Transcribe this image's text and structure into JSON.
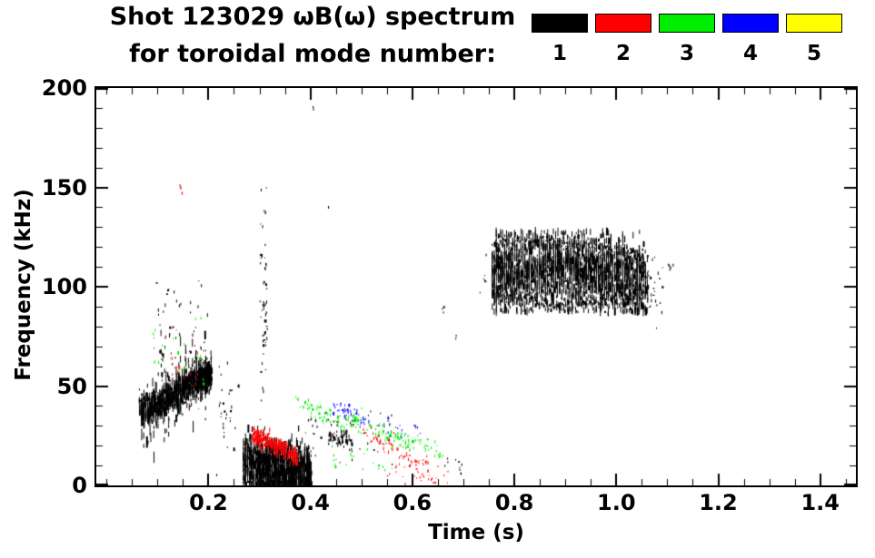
{
  "title": {
    "line1": "Shot 123029 ωB(ω) spectrum",
    "line2": "for toroidal mode number:"
  },
  "legend": {
    "items": [
      {
        "label": "1",
        "color": "#000000"
      },
      {
        "label": "2",
        "color": "#ff0000"
      },
      {
        "label": "3",
        "color": "#00ee00"
      },
      {
        "label": "4",
        "color": "#0000ff"
      },
      {
        "label": "5",
        "color": "#ffff00"
      }
    ]
  },
  "chart_data": {
    "type": "scatter",
    "title": "Shot 123029 ωB(ω) spectrum for toroidal mode number: 1-5",
    "xlabel": "Time (s)",
    "ylabel": "Frequency (kHz)",
    "xlim": [
      -0.02,
      1.47
    ],
    "ylim": [
      0,
      200
    ],
    "xticks": [
      0.2,
      0.4,
      0.6,
      0.8,
      1.0,
      1.2,
      1.4
    ],
    "xtick_labels": [
      "0.2",
      "0.4",
      "0.6",
      "0.8",
      "1.0",
      "1.2",
      "1.4"
    ],
    "yticks": [
      0,
      50,
      100,
      150,
      200
    ],
    "ytick_labels": [
      "0",
      "50",
      "100",
      "150",
      "200"
    ],
    "x_minor_step": 0.05,
    "y_minor_step": 10,
    "grid": false,
    "legend_position": "top-right",
    "modes": [
      {
        "mode": 1,
        "label": "1",
        "color": "#000000"
      },
      {
        "mode": 2,
        "label": "2",
        "color": "#ff0000"
      },
      {
        "mode": 3,
        "label": "3",
        "color": "#00ee00"
      },
      {
        "mode": 4,
        "label": "4",
        "color": "#0000ff"
      },
      {
        "mode": 5,
        "label": "5",
        "color": "#ffff00"
      }
    ],
    "clusters": [
      {
        "name": "n1-chirp-band",
        "mode": 1,
        "n": 1500,
        "path": [
          [
            0.065,
            37
          ],
          [
            0.1,
            40
          ],
          [
            0.145,
            49
          ],
          [
            0.205,
            56
          ]
        ],
        "spread": 3.5,
        "seg": [
          2,
          7
        ],
        "striate": 0.004
      },
      {
        "name": "n1-chirp-end-dense",
        "mode": 1,
        "n": 420,
        "path": [
          [
            0.175,
            53
          ],
          [
            0.205,
            56
          ]
        ],
        "spread": 2.5,
        "seg": [
          2,
          6
        ]
      },
      {
        "name": "n1-chirp-spikes",
        "mode": 1,
        "n": 150,
        "path": [
          [
            0.068,
            36
          ],
          [
            0.1,
            40
          ],
          [
            0.15,
            50
          ],
          [
            0.205,
            55
          ]
        ],
        "spread": 10,
        "seg": [
          3,
          13
        ]
      },
      {
        "name": "n1-chirp-upper-speckle",
        "mode": 1,
        "n": 55,
        "path": [
          [
            0.09,
            72
          ],
          [
            0.2,
            74
          ]
        ],
        "spread": 16,
        "seg": [
          1,
          4
        ]
      },
      {
        "name": "n1-spike-column-011",
        "mode": 1,
        "n": 12,
        "path": [
          [
            0.105,
            60
          ],
          [
            0.115,
            70
          ]
        ],
        "spread": 12,
        "seg": [
          2,
          6
        ]
      },
      {
        "name": "n1-dot-100",
        "mode": 1,
        "n": 3,
        "path": [
          [
            0.115,
            99
          ],
          [
            0.12,
            96
          ]
        ],
        "spread": 2,
        "seg": [
          1,
          3
        ]
      },
      {
        "name": "n3-early-speckle",
        "mode": 3,
        "n": 26,
        "path": [
          [
            0.09,
            70
          ],
          [
            0.19,
            62
          ]
        ],
        "spread": 11,
        "seg": [
          1,
          4
        ]
      },
      {
        "name": "n2-early-speckle",
        "mode": 2,
        "n": 18,
        "path": [
          [
            0.115,
            62
          ],
          [
            0.185,
            57
          ]
        ],
        "spread": 8,
        "seg": [
          1,
          4
        ]
      },
      {
        "name": "n2-dot-150",
        "mode": 2,
        "n": 5,
        "path": [
          [
            0.143,
            152
          ],
          [
            0.148,
            148
          ]
        ],
        "spread": 1.5,
        "seg": [
          2,
          5
        ]
      },
      {
        "name": "n1-gap-speckle",
        "mode": 1,
        "n": 28,
        "path": [
          [
            0.215,
            42
          ],
          [
            0.26,
            34
          ]
        ],
        "spread": 13,
        "seg": [
          1,
          4
        ]
      },
      {
        "name": "n1-burst-blob",
        "mode": 1,
        "n": 1700,
        "path": [
          [
            0.268,
            12
          ],
          [
            0.31,
            8
          ],
          [
            0.4,
            6
          ]
        ],
        "spread": 6,
        "seg": [
          2,
          9
        ],
        "clip": [
          0.3,
          30
        ],
        "striate": 0.004
      },
      {
        "name": "n1-burst-spikes",
        "mode": 1,
        "n": 110,
        "path": [
          [
            0.268,
            20
          ],
          [
            0.33,
            14
          ],
          [
            0.4,
            10
          ]
        ],
        "spread": 8,
        "seg": [
          3,
          12
        ],
        "clip": [
          0.3,
          38
        ]
      },
      {
        "name": "n2-burst-band",
        "mode": 2,
        "n": 330,
        "path": [
          [
            0.285,
            25
          ],
          [
            0.33,
            20
          ],
          [
            0.375,
            14
          ]
        ],
        "spread": 2.2,
        "seg": [
          2,
          5
        ]
      },
      {
        "name": "n1-column-030",
        "mode": 1,
        "n": 55,
        "path": [
          [
            0.3,
            85
          ],
          [
            0.315,
            85
          ]
        ],
        "spread": 33,
        "seg": [
          1,
          4
        ]
      },
      {
        "name": "n1-dot-140",
        "mode": 1,
        "n": 3,
        "path": [
          [
            0.308,
            139
          ],
          [
            0.312,
            137
          ]
        ],
        "spread": 1,
        "seg": [
          2,
          3
        ]
      },
      {
        "name": "n1-dot-190",
        "mode": 1,
        "n": 2,
        "path": [
          [
            0.404,
            190
          ],
          [
            0.407,
            189
          ]
        ],
        "spread": 1,
        "seg": [
          2,
          3
        ]
      },
      {
        "name": "n1-dot-141",
        "mode": 1,
        "n": 2,
        "path": [
          [
            0.432,
            141
          ],
          [
            0.436,
            140
          ]
        ],
        "spread": 1,
        "seg": [
          2,
          3
        ]
      },
      {
        "name": "n3-streak-1",
        "mode": 3,
        "n": 60,
        "path": [
          [
            0.37,
            44
          ],
          [
            0.47,
            29
          ]
        ],
        "spread": 2,
        "seg": [
          1,
          4
        ]
      },
      {
        "name": "n4-streak",
        "mode": 4,
        "n": 42,
        "path": [
          [
            0.44,
            40
          ],
          [
            0.52,
            31
          ]
        ],
        "spread": 2,
        "seg": [
          1,
          4
        ]
      },
      {
        "name": "n3-streak-2",
        "mode": 3,
        "n": 70,
        "path": [
          [
            0.47,
            34
          ],
          [
            0.6,
            19
          ]
        ],
        "spread": 2.4,
        "seg": [
          1,
          4
        ]
      },
      {
        "name": "n2-streak",
        "mode": 2,
        "n": 60,
        "path": [
          [
            0.5,
            28
          ],
          [
            0.63,
            9
          ]
        ],
        "spread": 2.4,
        "seg": [
          1,
          4
        ]
      },
      {
        "name": "n3-streak-3",
        "mode": 3,
        "n": 45,
        "path": [
          [
            0.55,
            27
          ],
          [
            0.665,
            15
          ]
        ],
        "spread": 2,
        "seg": [
          1,
          4
        ]
      },
      {
        "name": "n1-mid-clump",
        "mode": 1,
        "n": 60,
        "path": [
          [
            0.435,
            25
          ],
          [
            0.48,
            21
          ]
        ],
        "spread": 1.8,
        "seg": [
          2,
          5
        ]
      },
      {
        "name": "n1-mid-speckle",
        "mode": 1,
        "n": 45,
        "path": [
          [
            0.38,
            34
          ],
          [
            0.56,
            16
          ]
        ],
        "spread": 8,
        "seg": [
          1,
          3
        ]
      },
      {
        "name": "n2-low-speckle",
        "mode": 2,
        "n": 30,
        "path": [
          [
            0.55,
            6
          ],
          [
            0.67,
            4
          ]
        ],
        "spread": 3,
        "seg": [
          1,
          3
        ],
        "clip": [
          0.3,
          20
        ]
      },
      {
        "name": "n3-low-speckle",
        "mode": 3,
        "n": 20,
        "path": [
          [
            0.43,
            12
          ],
          [
            0.56,
            8
          ]
        ],
        "spread": 4,
        "seg": [
          1,
          3
        ]
      },
      {
        "name": "n4-mid-dots",
        "mode": 4,
        "n": 14,
        "path": [
          [
            0.55,
            31
          ],
          [
            0.62,
            26
          ]
        ],
        "spread": 3,
        "seg": [
          1,
          3
        ]
      },
      {
        "name": "n1-dot-090",
        "mode": 1,
        "n": 3,
        "path": [
          [
            0.658,
            90
          ],
          [
            0.662,
            88
          ]
        ],
        "spread": 1.5,
        "seg": [
          2,
          3
        ]
      },
      {
        "name": "n1-dot-075",
        "mode": 1,
        "n": 2,
        "path": [
          [
            0.684,
            74
          ],
          [
            0.687,
            73
          ]
        ],
        "spread": 1,
        "seg": [
          2,
          3
        ]
      },
      {
        "name": "n1-low-tail",
        "mode": 1,
        "n": 10,
        "path": [
          [
            0.66,
            12
          ],
          [
            0.7,
            7
          ]
        ],
        "spread": 3,
        "seg": [
          1,
          3
        ]
      },
      {
        "name": "n1-eigenmode-core",
        "mode": 1,
        "n": 2400,
        "path": [
          [
            0.755,
            107
          ],
          [
            0.85,
            110
          ],
          [
            0.98,
            107
          ],
          [
            1.06,
            103
          ]
        ],
        "spread": 9,
        "seg": [
          2,
          10
        ],
        "clip": [
          87,
          128
        ],
        "striate": 0.004
      },
      {
        "name": "n1-eigenmode-top-edge",
        "mode": 1,
        "n": 220,
        "path": [
          [
            0.76,
            122
          ],
          [
            0.85,
            124
          ],
          [
            0.98,
            119
          ],
          [
            1.055,
            115
          ]
        ],
        "spread": 2,
        "seg": [
          1,
          4
        ]
      },
      {
        "name": "n1-eigenmode-bottom-edge",
        "mode": 1,
        "n": 240,
        "path": [
          [
            0.76,
            96
          ],
          [
            0.9,
            91
          ],
          [
            1.04,
            94
          ]
        ],
        "spread": 2,
        "seg": [
          2,
          5
        ]
      },
      {
        "name": "n1-eigen-tail",
        "mode": 1,
        "n": 25,
        "path": [
          [
            1.06,
            100
          ],
          [
            1.09,
            100
          ]
        ],
        "spread": 8,
        "seg": [
          1,
          4
        ]
      },
      {
        "name": "n1-pre-eigen-dots",
        "mode": 1,
        "n": 6,
        "path": [
          [
            0.73,
            104
          ],
          [
            0.748,
            110
          ]
        ],
        "spread": 5,
        "seg": [
          1,
          3
        ]
      },
      {
        "name": "n1-post-eigen-dots",
        "mode": 1,
        "n": 5,
        "path": [
          [
            1.1,
            112
          ],
          [
            1.115,
            107
          ]
        ],
        "spread": 2,
        "seg": [
          2,
          4
        ]
      }
    ]
  }
}
